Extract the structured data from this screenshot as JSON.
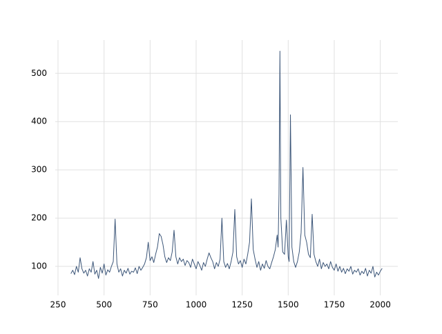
{
  "chart_data": {
    "type": "line",
    "x": [
      320,
      330,
      340,
      350,
      360,
      370,
      380,
      390,
      400,
      410,
      420,
      430,
      440,
      450,
      460,
      470,
      480,
      490,
      500,
      510,
      520,
      530,
      540,
      550,
      560,
      570,
      580,
      590,
      600,
      610,
      620,
      630,
      640,
      650,
      660,
      670,
      680,
      690,
      700,
      710,
      720,
      730,
      740,
      750,
      760,
      770,
      780,
      790,
      800,
      810,
      820,
      830,
      840,
      850,
      860,
      870,
      880,
      890,
      900,
      910,
      920,
      930,
      940,
      950,
      960,
      970,
      980,
      990,
      1000,
      1010,
      1020,
      1030,
      1040,
      1050,
      1060,
      1070,
      1080,
      1090,
      1100,
      1110,
      1120,
      1130,
      1140,
      1150,
      1160,
      1170,
      1180,
      1190,
      1200,
      1210,
      1220,
      1230,
      1240,
      1250,
      1260,
      1270,
      1280,
      1290,
      1300,
      1310,
      1320,
      1330,
      1340,
      1350,
      1360,
      1370,
      1380,
      1390,
      1400,
      1410,
      1420,
      1430,
      1440,
      1445,
      1450,
      1455,
      1460,
      1470,
      1480,
      1490,
      1500,
      1505,
      1512,
      1520,
      1530,
      1540,
      1550,
      1560,
      1570,
      1580,
      1590,
      1600,
      1610,
      1620,
      1630,
      1640,
      1650,
      1660,
      1670,
      1680,
      1690,
      1700,
      1710,
      1720,
      1730,
      1740,
      1750,
      1760,
      1770,
      1780,
      1790,
      1800,
      1810,
      1820,
      1830,
      1840,
      1850,
      1860,
      1870,
      1880,
      1890,
      1900,
      1910,
      1920,
      1930,
      1940,
      1950,
      1960,
      1970,
      1980,
      1990,
      2000,
      2010
    ],
    "series": [
      {
        "color": "#3b5578",
        "values": [
          85,
          92,
          83,
          100,
          88,
          118,
          95,
          86,
          92,
          80,
          95,
          88,
          110,
          84,
          92,
          75,
          98,
          86,
          105,
          82,
          93,
          88,
          100,
          110,
          198,
          105,
          88,
          95,
          80,
          92,
          86,
          96,
          84,
          90,
          88,
          97,
          85,
          100,
          92,
          98,
          105,
          118,
          150,
          112,
          120,
          108,
          125,
          140,
          168,
          162,
          145,
          120,
          108,
          118,
          112,
          130,
          175,
          120,
          105,
          118,
          110,
          115,
          102,
          112,
          108,
          98,
          115,
          105,
          95,
          110,
          102,
          92,
          108,
          100,
          115,
          128,
          118,
          110,
          95,
          108,
          100,
          115,
          200,
          110,
          98,
          106,
          95,
          110,
          130,
          218,
          120,
          105,
          112,
          98,
          115,
          105,
          125,
          150,
          240,
          135,
          115,
          98,
          110,
          92,
          105,
          96,
          112,
          100,
          95,
          108,
          120,
          135,
          165,
          140,
          250,
          546,
          200,
          130,
          125,
          196,
          120,
          110,
          414,
          140,
          110,
          98,
          110,
          130,
          170,
          305,
          165,
          150,
          125,
          118,
          208,
          125,
          110,
          100,
          115,
          95,
          108,
          100,
          105,
          95,
          110,
          98,
          92,
          105,
          90,
          100,
          88,
          96,
          85,
          95,
          90,
          100,
          84,
          92,
          88,
          95,
          82,
          90,
          85,
          96,
          80,
          92,
          86,
          100,
          78,
          88,
          82,
          90,
          96
        ]
      }
    ],
    "xlim": [
      235,
      2095
    ],
    "ylim": [
      40,
      569
    ],
    "xticks": [
      250,
      500,
      750,
      1000,
      1250,
      1500,
      1750,
      2000
    ],
    "yticks": [
      100,
      200,
      300,
      400,
      500
    ],
    "grid": true
  }
}
